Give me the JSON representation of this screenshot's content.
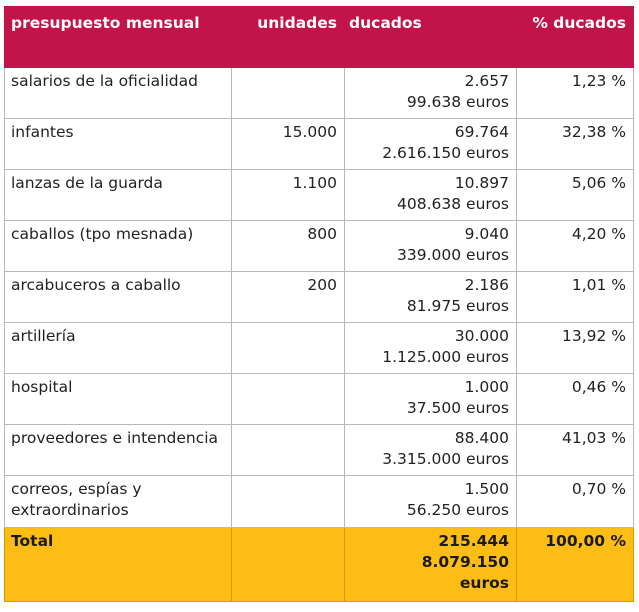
{
  "table": {
    "headers": {
      "concept": "presupuesto mensual",
      "units": "unidades",
      "ducats": "ducados",
      "percent": "% ducados"
    },
    "rows": [
      {
        "concept": "salarios de la oficialidad",
        "units": "",
        "ducats": "2.657",
        "euros": "99.638 euros",
        "percent": "1,23 %"
      },
      {
        "concept": "infantes",
        "units": "15.000",
        "ducats": "69.764",
        "euros": "2.616.150 euros",
        "percent": "32,38 %"
      },
      {
        "concept": "lanzas de la guarda",
        "units": "1.100",
        "ducats": "10.897",
        "euros": "408.638 euros",
        "percent": "5,06 %"
      },
      {
        "concept": "caballos (tpo mesnada)",
        "units": "800",
        "ducats": "9.040",
        "euros": "339.000 euros",
        "percent": "4,20 %"
      },
      {
        "concept": "arcabuceros a caballo",
        "units": "200",
        "ducats": "2.186",
        "euros": "81.975 euros",
        "percent": "1,01 %"
      },
      {
        "concept": "artillería",
        "units": "",
        "ducats": "30.000",
        "euros": "1.125.000 euros",
        "percent": "13,92 %"
      },
      {
        "concept": "hospital",
        "units": "",
        "ducats": "1.000",
        "euros": "37.500 euros",
        "percent": "0,46 %"
      },
      {
        "concept": "proveedores e intendencia",
        "units": "",
        "ducats": "88.400",
        "euros": "3.315.000 euros",
        "percent": "41,03 %"
      },
      {
        "concept": "correos, espías y extraordinarios",
        "units": "",
        "ducats": "1.500",
        "euros": "56.250 euros",
        "percent": "0,70 %"
      }
    ],
    "total": {
      "concept": "Total",
      "ducats": "215.444",
      "euros_value": "8.079.150",
      "euros_unit": "euros",
      "percent": "100,00 %"
    }
  },
  "colors": {
    "header_bg": "#c2134a",
    "total_bg": "#fdbd14"
  }
}
